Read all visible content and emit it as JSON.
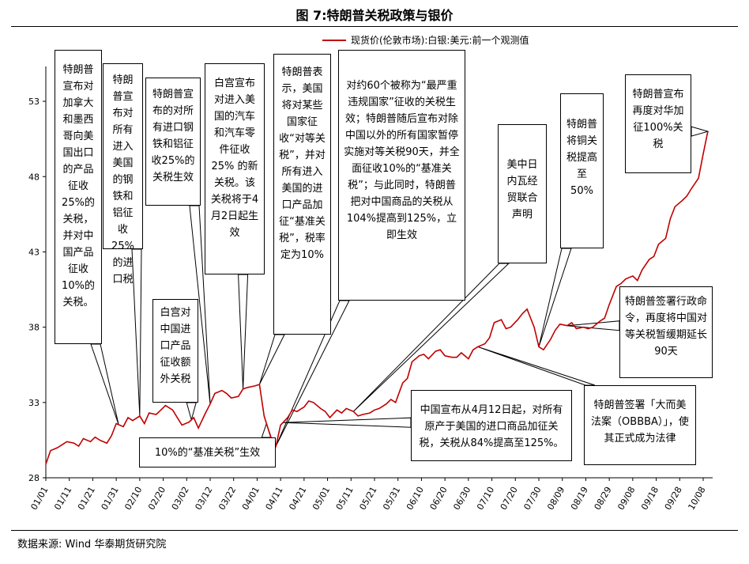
{
  "title": "图 7:特朗普关税政策与银价",
  "source": "数据来源:   Wind  华泰期货研究院",
  "colors": {
    "line": "#c00000"
  },
  "chart_data": {
    "type": "line",
    "title": "图 7:特朗普关税政策与银价",
    "legend": "现货价(伦敦市场):白银:美元:前一个观测值",
    "legend_position": "top",
    "ylim": [
      28,
      55
    ],
    "yticks": [
      28,
      33,
      38,
      43,
      48,
      53
    ],
    "x_tick_labels": [
      "01/01",
      "01/11",
      "01/21",
      "01/31",
      "02/10",
      "02/20",
      "03/02",
      "03/12",
      "03/22",
      "04/01",
      "04/11",
      "04/21",
      "05/01",
      "05/11",
      "05/21",
      "05/31",
      "06/10",
      "06/20",
      "06/30",
      "07/10",
      "07/20",
      "07/30",
      "08/09",
      "08/19",
      "08/29",
      "09/08",
      "09/18",
      "09/28",
      "10/08"
    ],
    "grid": false,
    "series": [
      {
        "name": "现货价(伦敦市场):白银:美元:前一个观测值",
        "x": [
          "01-01",
          "01-03",
          "01-06",
          "01-08",
          "01-10",
          "01-13",
          "01-15",
          "01-17",
          "01-20",
          "01-22",
          "01-24",
          "01-27",
          "01-29",
          "01-31",
          "02-03",
          "02-05",
          "02-07",
          "02-10",
          "02-12",
          "02-14",
          "02-17",
          "02-19",
          "02-21",
          "02-24",
          "02-26",
          "02-28",
          "03-03",
          "03-05",
          "03-07",
          "03-10",
          "03-12",
          "03-14",
          "03-17",
          "03-19",
          "03-21",
          "03-24",
          "03-26",
          "03-28",
          "03-31",
          "04-02",
          "04-04",
          "04-07",
          "04-09",
          "04-11",
          "04-14",
          "04-16",
          "04-18",
          "04-21",
          "04-23",
          "04-25",
          "04-28",
          "04-30",
          "05-02",
          "05-05",
          "05-07",
          "05-09",
          "05-12",
          "05-14",
          "05-16",
          "05-19",
          "05-21",
          "05-23",
          "05-26",
          "05-28",
          "05-30",
          "06-02",
          "06-04",
          "06-06",
          "06-09",
          "06-11",
          "06-13",
          "06-16",
          "06-18",
          "06-20",
          "06-23",
          "06-25",
          "06-27",
          "06-30",
          "07-02",
          "07-04",
          "07-07",
          "07-09",
          "07-11",
          "07-14",
          "07-16",
          "07-18",
          "07-21",
          "07-23",
          "07-25",
          "07-28",
          "07-30",
          "08-01",
          "08-04",
          "08-06",
          "08-08",
          "08-11",
          "08-13",
          "08-15",
          "08-18",
          "08-20",
          "08-22",
          "08-25",
          "08-27",
          "08-29",
          "09-01",
          "09-03",
          "09-05",
          "09-08",
          "09-10",
          "09-12",
          "09-15",
          "09-17",
          "09-19",
          "09-22",
          "09-24",
          "09-26",
          "09-29",
          "10-01",
          "10-03",
          "10-06",
          "10-08",
          "10-10"
        ],
        "values": [
          28.9,
          29.8,
          30.0,
          30.2,
          30.4,
          30.3,
          30.1,
          30.6,
          30.4,
          30.7,
          30.5,
          30.3,
          30.8,
          31.6,
          31.4,
          32.0,
          31.8,
          32.1,
          31.6,
          32.3,
          32.2,
          32.5,
          32.8,
          32.5,
          32.0,
          31.5,
          31.7,
          32.0,
          31.3,
          32.3,
          32.9,
          33.6,
          33.8,
          33.6,
          33.3,
          33.4,
          33.9,
          34.0,
          34.1,
          34.2,
          32.1,
          30.6,
          30.1,
          31.5,
          32.0,
          32.5,
          32.4,
          32.7,
          33.1,
          33.0,
          32.6,
          32.4,
          32.0,
          32.5,
          32.3,
          32.6,
          32.4,
          32.1,
          32.2,
          32.3,
          32.5,
          32.6,
          32.9,
          33.2,
          33.0,
          34.3,
          34.6,
          35.7,
          36.1,
          36.2,
          35.9,
          36.4,
          36.5,
          36.1,
          36.0,
          36.0,
          36.3,
          35.9,
          36.5,
          36.7,
          36.9,
          37.3,
          38.3,
          38.5,
          37.9,
          38.0,
          38.5,
          38.9,
          39.2,
          38.0,
          36.7,
          36.5,
          37.2,
          37.8,
          38.2,
          38.1,
          38.3,
          37.9,
          38.0,
          37.9,
          38.0,
          38.4,
          38.6,
          39.5,
          40.7,
          40.9,
          41.2,
          41.4,
          41.1,
          41.8,
          42.5,
          42.7,
          43.5,
          43.9,
          45.2,
          46.0,
          46.4,
          46.7,
          47.2,
          47.9,
          49.5,
          51.0
        ]
      }
    ],
    "annotations": [
      {
        "id": "a1",
        "text": "特朗普宣布对加拿大和墨西哥向美国出口的产品征收25%的关税，并对中国产品征收10%的关税。",
        "date": "02-01"
      },
      {
        "id": "a2",
        "text": "特朗普宣布对所有进入美国的钢铁和铝征收25%的进口税",
        "date": "02-10"
      },
      {
        "id": "a3",
        "text": "特朗普宣布的对所有进口钢铁和铝征收25%的关税生效",
        "date": "03-12"
      },
      {
        "id": "a4",
        "text": "白宫对中国进口产品征收额外关税",
        "date": "03-04"
      },
      {
        "id": "a5",
        "text": "白宫宣布对进入美国的汽车和汽车零件征收25% 的新关税。该关税将于4月2日起生效",
        "date": "03-26"
      },
      {
        "id": "a6",
        "text": "特朗普表示，美国将对某些国家征收“对等关税”，并对所有进入美国的进口产品加征“基准关税”，税率定为10%",
        "date": "04-02"
      },
      {
        "id": "a7",
        "text": "10%的“基准关税”生效",
        "date": "04-05"
      },
      {
        "id": "a8",
        "text": "对约60个被称为“最严重违规国家”征收的关税生效；特朗普随后宣布对除中国以外的所有国家暂停实施对等关税90天，并全面征收10%的“基准关税”；与此同时，特朗普把对中国商品的关税从104%提高到125%，立即生效",
        "date": "04-09"
      },
      {
        "id": "a9",
        "text": "中国宣布从4月12日起，对所有原产于美国的进口商品加征关税，关税从84%提高至125%。",
        "date": "04-12"
      },
      {
        "id": "a10",
        "text": "美中日内瓦经贸联合声明",
        "date": "05-12"
      },
      {
        "id": "a11",
        "text": "特朗普将铜关税提高至50%",
        "date": "07-30"
      },
      {
        "id": "a12",
        "text": "特朗普签署「大而美法案（OBBBA）」，使其正式成为法律",
        "date": "07-04"
      },
      {
        "id": "a13",
        "text": "特朗普签署行政命令，再度将中国对等关税暂缓期延长90天",
        "date": "08-11"
      },
      {
        "id": "a14",
        "text": "特朗普宣布再度对华加征100%关税",
        "date": "10-10"
      }
    ]
  }
}
